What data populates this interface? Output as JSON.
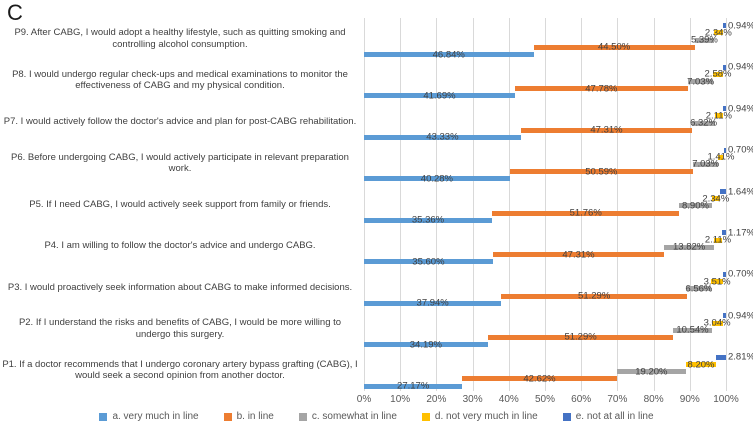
{
  "figure_label": "C",
  "chart_data": {
    "type": "bar",
    "orientation": "horizontal",
    "stacked": true,
    "stacked_total": 100,
    "grid": true,
    "legend_position": "bottom",
    "xlim": [
      0,
      100
    ],
    "x_ticks": [
      "0%",
      "10%",
      "20%",
      "30%",
      "40%",
      "50%",
      "60%",
      "70%",
      "80%",
      "90%",
      "100%"
    ],
    "value_label_format": "percent-2-decimals",
    "categories": [
      "P9. After CABG, I would adopt a healthy lifestyle, such as quitting smoking and controlling alcohol consumption.",
      "P8. I would undergo regular check-ups and medical examinations to monitor the effectiveness of CABG and my physical condition.",
      "P7. I would actively follow the doctor's advice and plan for post-CABG rehabilitation.",
      "P6. Before undergoing CABG, I would actively participate in relevant preparation work.",
      "P5. If I need CABG, I would actively seek support from family or friends.",
      "P4. I am willing to follow the doctor's advice and undergo CABG.",
      "P3. I would proactively seek information about CABG to make informed decisions.",
      "P2. If I understand the risks and benefits of CABG, I would be more willing to undergo this surgery.",
      "P1. If a doctor recommends that I undergo coronary artery bypass grafting (CABG), I would seek a second opinion from another doctor."
    ],
    "series": [
      {
        "name": "a. very much in line",
        "color": "#5B9BD5",
        "values": [
          46.84,
          41.69,
          43.33,
          40.28,
          35.36,
          35.6,
          37.94,
          34.19,
          27.17
        ]
      },
      {
        "name": "b. in line",
        "color": "#ED7D31",
        "values": [
          44.5,
          47.78,
          47.31,
          50.59,
          51.76,
          47.31,
          51.29,
          51.29,
          42.62
        ]
      },
      {
        "name": "c. somewhat in line",
        "color": "#A5A5A5",
        "values": [
          5.39,
          7.03,
          6.32,
          7.03,
          8.9,
          13.82,
          6.56,
          10.54,
          19.2
        ]
      },
      {
        "name": "d. not very much in line",
        "color": "#FFC000",
        "values": [
          2.34,
          2.58,
          2.11,
          1.41,
          2.34,
          2.11,
          3.51,
          3.04,
          8.2
        ]
      },
      {
        "name": "e. not at all in line",
        "color": "#4472C4",
        "values": [
          0.94,
          0.94,
          0.94,
          0.7,
          1.64,
          1.17,
          0.7,
          0.94,
          2.81
        ]
      }
    ],
    "colors": {
      "grid": "#d9d9d9",
      "data_label_text": "#404040",
      "axis_text": "#595959"
    }
  }
}
